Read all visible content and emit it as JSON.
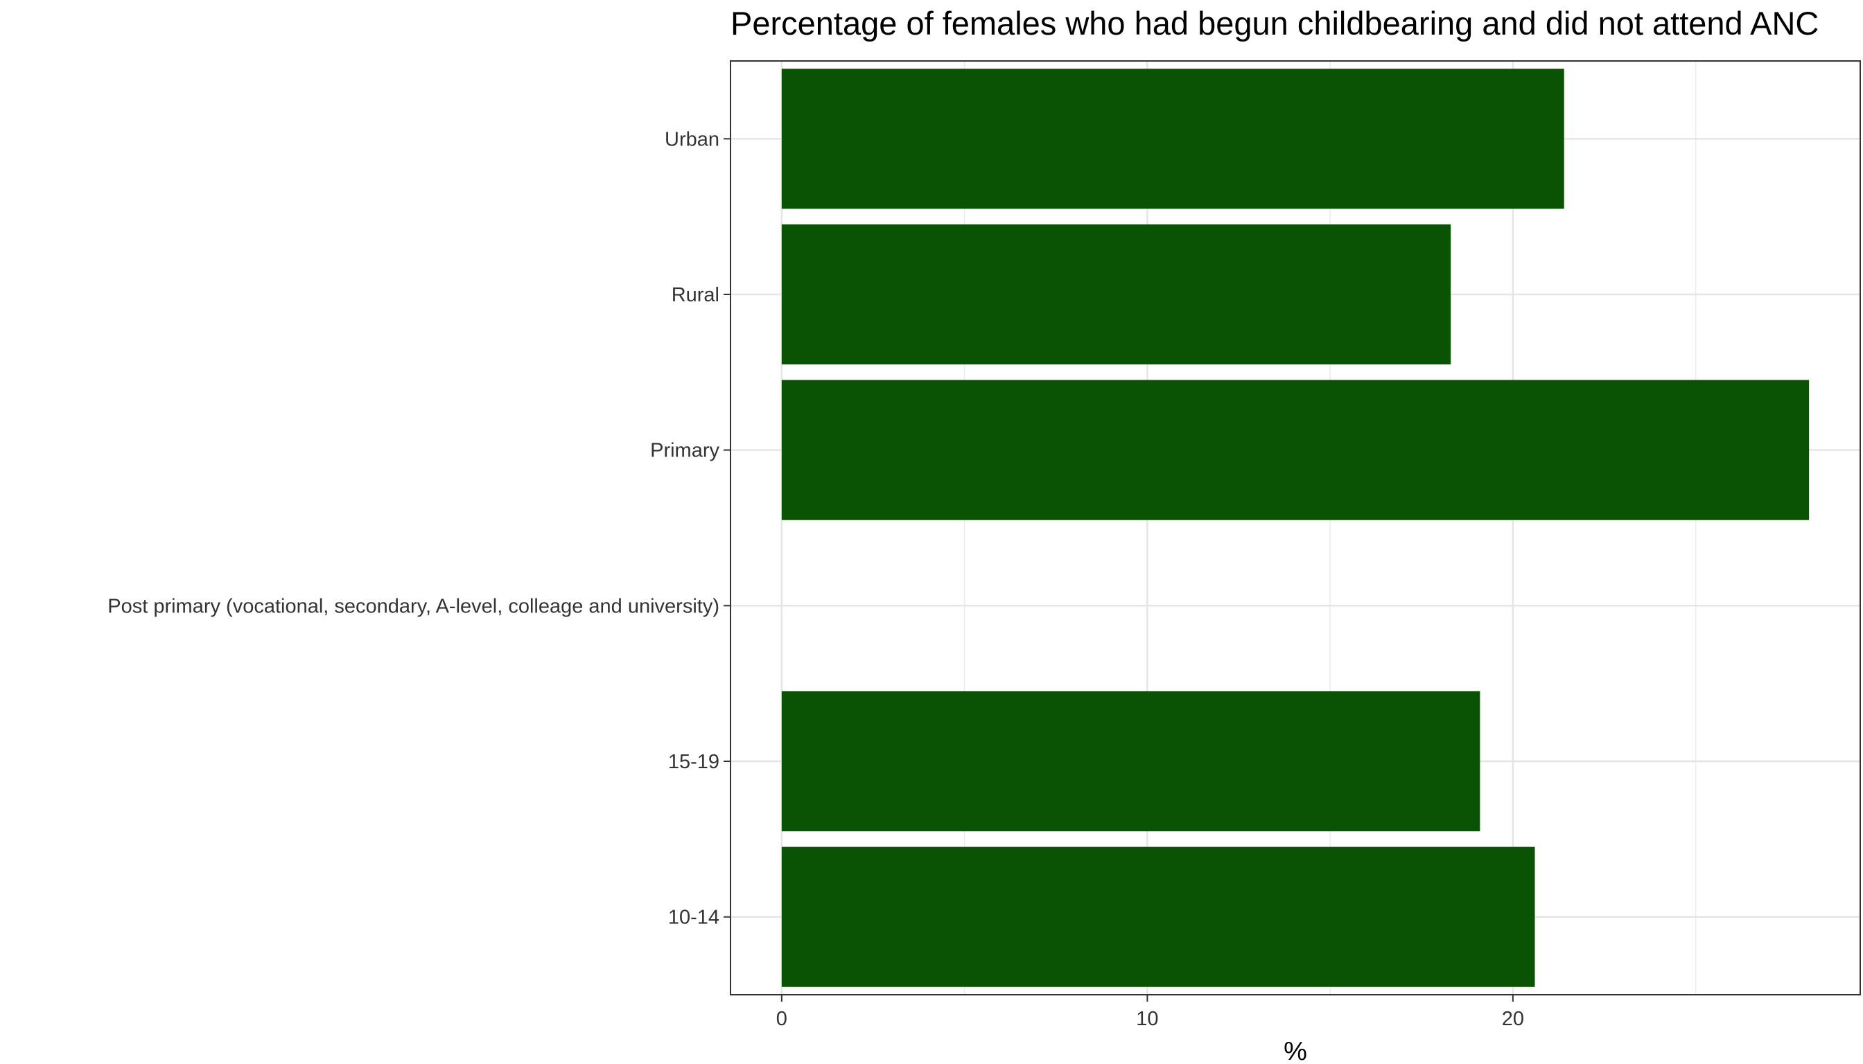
{
  "chart_data": {
    "type": "bar",
    "orientation": "horizontal",
    "title": "Percentage of females who had begun childbearing and did not attend ANC",
    "xlabel": "%",
    "ylabel": "",
    "categories": [
      "Urban",
      "Rural",
      "Primary",
      "Post primary (vocational, secondary, A-level, colleage and university)",
      "15-19",
      "10-14"
    ],
    "values": [
      21.4,
      18.3,
      28.1,
      0,
      19.1,
      20.6
    ],
    "xlim": [
      -1.4,
      29.5
    ],
    "xticks": [
      "0",
      "10",
      "20"
    ],
    "grid": true,
    "legend": "none",
    "bar_color": "#0b5304"
  }
}
